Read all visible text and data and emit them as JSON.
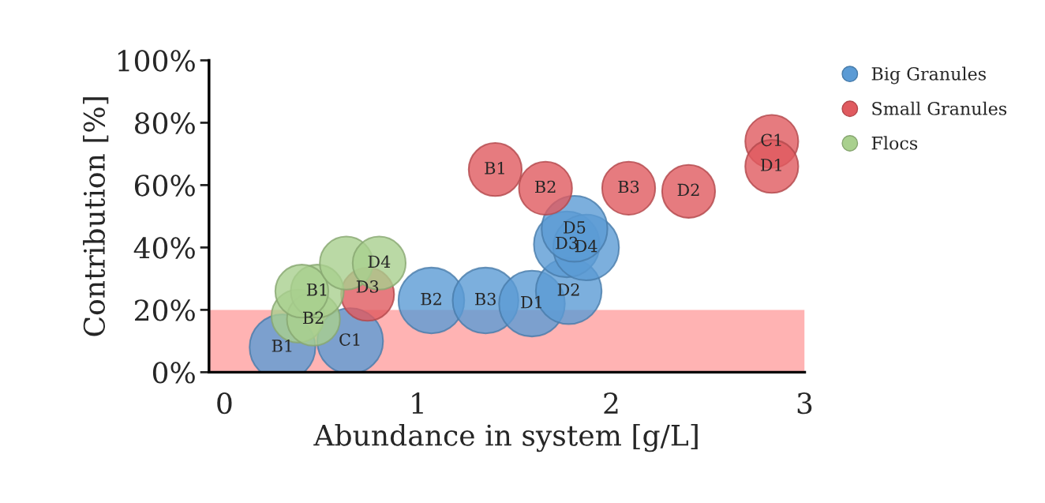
{
  "chart_data": {
    "type": "bubble",
    "xlabel": "Abundance in system [g/L]",
    "ylabel": "Contribution [%]",
    "xlim": [
      -0.08,
      3
    ],
    "xticks": [
      0,
      1,
      2,
      3
    ],
    "ylim": [
      0,
      100
    ],
    "yticks": [
      {
        "value": 0,
        "label": "0%"
      },
      {
        "value": 20,
        "label": "20%"
      },
      {
        "value": 40,
        "label": "40%"
      },
      {
        "value": 60,
        "label": "60%"
      },
      {
        "value": 80,
        "label": "80%"
      },
      {
        "value": 100,
        "label": "100%"
      }
    ],
    "grid": false,
    "legend": "top right",
    "marker": "circle",
    "bands": [
      {
        "axis": "y",
        "from": 0,
        "to": 20,
        "color": "#ffb3b3"
      }
    ],
    "series": [
      {
        "name": "Big Granules",
        "color": "#5b9bd5",
        "x": [
          0.3,
          0.65,
          1.07,
          1.35,
          1.59,
          1.78,
          1.77,
          1.87,
          1.81
        ],
        "values": [
          8,
          10,
          23,
          23,
          22,
          26,
          41,
          40,
          46
        ],
        "sizes": [
          1,
          1,
          1,
          1,
          1,
          1,
          1,
          1,
          1
        ]
      },
      {
        "name": "Small Granules",
        "color": "#e05a5f",
        "x": [
          0.74,
          1.4,
          1.66,
          2.09,
          2.4,
          2.83,
          2.83
        ],
        "values": [
          25,
          65,
          59,
          59,
          58,
          74,
          66
        ],
        "sizes": [
          0.65,
          0.65,
          0.65,
          0.65,
          0.65,
          0.65,
          0.65
        ]
      },
      {
        "name": "Flocs",
        "color": "#a9d08e",
        "x": [
          0.38,
          0.46,
          0.48,
          0.4,
          0.63,
          0.8
        ],
        "values": [
          18,
          17,
          26,
          26,
          35,
          35
        ],
        "sizes": [
          0.65,
          0.65,
          0.65,
          0.65,
          0.65,
          0.65
        ]
      }
    ],
    "annotations": [
      {
        "text": "B1",
        "x": 0.3,
        "y": 8
      },
      {
        "text": "C1",
        "x": 0.65,
        "y": 10
      },
      {
        "text": "B2",
        "x": 1.07,
        "y": 23
      },
      {
        "text": "B3",
        "x": 1.35,
        "y": 23
      },
      {
        "text": "D1",
        "x": 1.59,
        "y": 22
      },
      {
        "text": "D2",
        "x": 1.78,
        "y": 26
      },
      {
        "text": "D3",
        "x": 1.77,
        "y": 41
      },
      {
        "text": "D4",
        "x": 1.87,
        "y": 40
      },
      {
        "text": "D5",
        "x": 1.81,
        "y": 46
      },
      {
        "text": "D3",
        "x": 0.74,
        "y": 27
      },
      {
        "text": "B1",
        "x": 1.4,
        "y": 65
      },
      {
        "text": "B2",
        "x": 1.66,
        "y": 59
      },
      {
        "text": "B3",
        "x": 2.09,
        "y": 59
      },
      {
        "text": "D2",
        "x": 2.4,
        "y": 58
      },
      {
        "text": "C1",
        "x": 2.83,
        "y": 74
      },
      {
        "text": "D1",
        "x": 2.83,
        "y": 66
      },
      {
        "text": "B2",
        "x": 0.46,
        "y": 17
      },
      {
        "text": "B1",
        "x": 0.48,
        "y": 26
      },
      {
        "text": "D4",
        "x": 0.8,
        "y": 35
      }
    ]
  }
}
